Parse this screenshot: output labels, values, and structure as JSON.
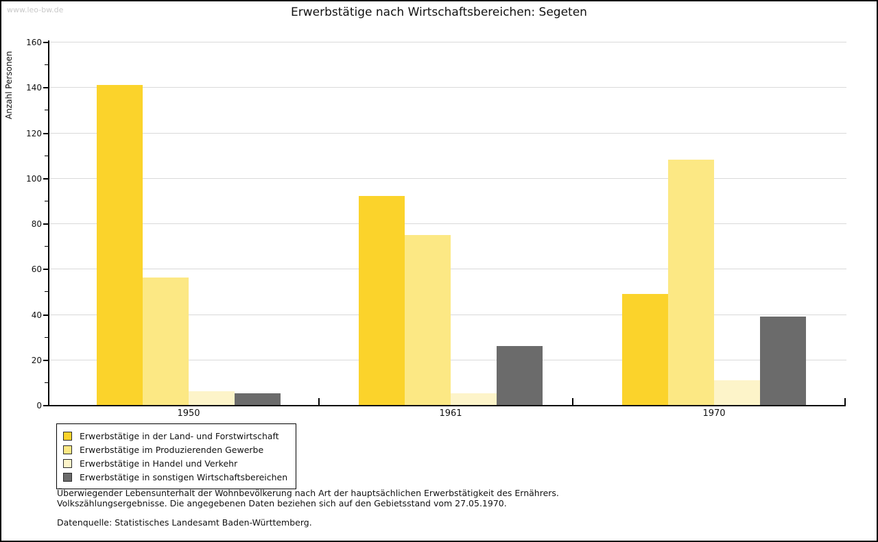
{
  "watermark": "www.leo-bw.de",
  "title": "Erwerbstätige nach Wirtschaftsbereichen: Segeten",
  "chart_data": {
    "type": "bar",
    "title": "Erwerbstätige nach Wirtschaftsbereichen: Segeten",
    "xlabel": "",
    "ylabel": "Anzahl Personen",
    "ylim": [
      0,
      160
    ],
    "ytick_step": 20,
    "yminortick_step": 10,
    "grid": "horizontal-major-on",
    "legend_position": "bottom-left-boxed",
    "categories": [
      "1950",
      "1961",
      "1970"
    ],
    "series": [
      {
        "name": "Erwerbstätige in der Land- und Forstwirtschaft",
        "color": "#fbd32b",
        "values": [
          141,
          92,
          49
        ]
      },
      {
        "name": "Erwerbstätige im Produzierenden Gewerbe",
        "color": "#fce884",
        "values": [
          56,
          75,
          108
        ]
      },
      {
        "name": "Erwerbstätige in Handel und Verkehr",
        "color": "#fdf4c9",
        "values": [
          6,
          5,
          11
        ]
      },
      {
        "name": "Erwerbstätige in sonstigen Wirtschaftsbereichen",
        "color": "#6b6b6b",
        "values": [
          5,
          26,
          39
        ]
      }
    ]
  },
  "footnotes": {
    "line1": "Überwiegender Lebensunterhalt der Wohnbevölkerung nach Art der hauptsächlichen Erwerbstätigkeit des Ernährers.",
    "line2": "Volkszählungsergebnisse. Die angegebenen Daten beziehen sich auf den Gebietsstand vom 27.05.1970.",
    "source": "Datenquelle: Statistisches Landesamt Baden-Württemberg."
  },
  "colors": {
    "background": "#ffffff",
    "frame": "#000000",
    "gridline": "#d9d9d9",
    "axis": "#000000",
    "watermark": "#c9c9c9",
    "text": "#111111"
  }
}
